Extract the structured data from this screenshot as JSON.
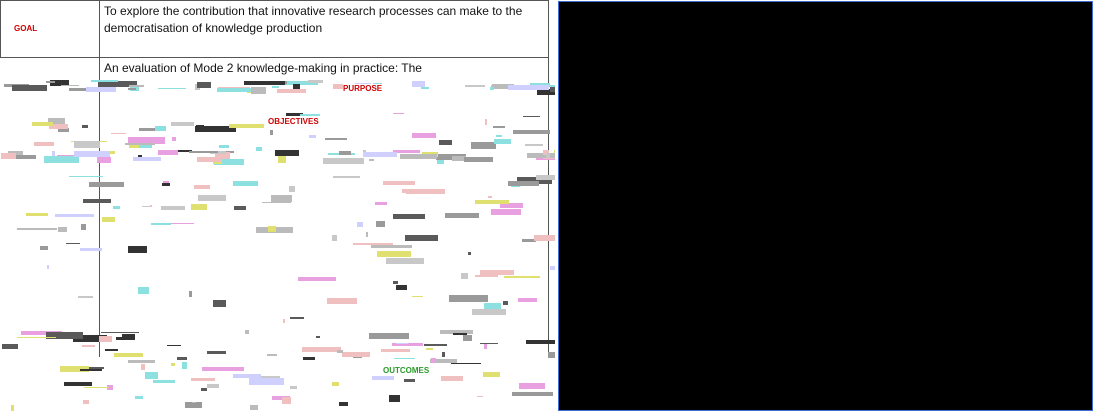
{
  "goal": {
    "label": "GOAL",
    "text": "To explore the contribution that innovative research processes can make to the democratisation of knowledge production"
  },
  "purpose": {
    "text": "An evaluation of Mode 2  knowledge-making in practice: The",
    "label": "PURPOSE"
  },
  "objectives": {
    "label": "OBJECTIVES"
  },
  "outcomes": {
    "label": "OUTCOMES"
  }
}
